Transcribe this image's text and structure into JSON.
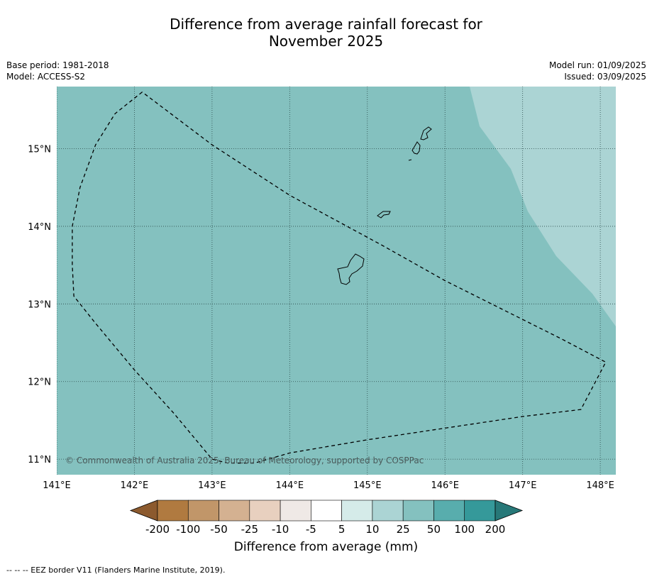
{
  "title": {
    "line1": "Difference from average rainfall forecast for",
    "line2": "November 2025"
  },
  "meta_left": {
    "base_period": "Base period: 1981-2018",
    "model": "Model: ACCESS-S2"
  },
  "meta_right": {
    "model_run": "Model run: 01/09/2025",
    "issued": "Issued: 03/09/2025"
  },
  "map": {
    "lon_range": [
      141,
      148.2
    ],
    "lat_range": [
      10.8,
      15.8
    ],
    "lon_ticks": [
      141,
      142,
      143,
      144,
      145,
      146,
      147,
      148
    ],
    "lat_ticks": [
      11,
      12,
      13,
      14,
      15
    ],
    "lon_tick_labels": [
      "141°E",
      "142°E",
      "143°E",
      "144°E",
      "145°E",
      "146°E",
      "147°E",
      "148°E"
    ],
    "lat_tick_labels": [
      "11°N",
      "12°N",
      "13°N",
      "14°N",
      "15°N"
    ],
    "gridlines": true,
    "base_fill": "#84c1bf",
    "wetter_region_fill": "#abd4d4",
    "copyright": "© Commonwealth of Australia 2025, Bureau of Meteorology, supported by COSPPac",
    "eez_border_lonlat": [
      [
        142.1,
        15.73
      ],
      [
        141.75,
        15.45
      ],
      [
        141.5,
        15.05
      ],
      [
        141.3,
        14.5
      ],
      [
        141.2,
        14.0
      ],
      [
        141.2,
        13.5
      ],
      [
        141.22,
        13.1
      ],
      [
        141.5,
        12.75
      ],
      [
        142.0,
        12.15
      ],
      [
        142.5,
        11.6
      ],
      [
        143.0,
        11.0
      ],
      [
        143.2,
        10.95
      ],
      [
        143.55,
        10.95
      ],
      [
        144.0,
        11.08
      ],
      [
        145.0,
        11.25
      ],
      [
        146.0,
        11.4
      ],
      [
        147.0,
        11.55
      ],
      [
        147.75,
        11.64
      ],
      [
        148.07,
        12.25
      ],
      [
        147.5,
        12.55
      ],
      [
        146.8,
        12.9
      ],
      [
        146.0,
        13.3
      ],
      [
        145.2,
        13.75
      ],
      [
        144.0,
        14.4
      ],
      [
        143.0,
        15.05
      ],
      [
        142.1,
        15.73
      ]
    ]
  },
  "colorbar": {
    "labels": [
      "-200",
      "-100",
      "-50",
      "-25",
      "-10",
      "-5",
      "5",
      "10",
      "25",
      "50",
      "100",
      "200"
    ],
    "colors": [
      "#8c5a2e",
      "#b07a40",
      "#c19669",
      "#d4b191",
      "#e8d0bf",
      "#efe9e6",
      "#ffffff",
      "#d5ebe9",
      "#abd4d4",
      "#84c1bf",
      "#58adad",
      "#35999a",
      "#277878"
    ],
    "title": "Difference from average (mm)"
  },
  "footnote": "--  --  -- EEZ border V11 (Flanders Marine Institute, 2019)."
}
